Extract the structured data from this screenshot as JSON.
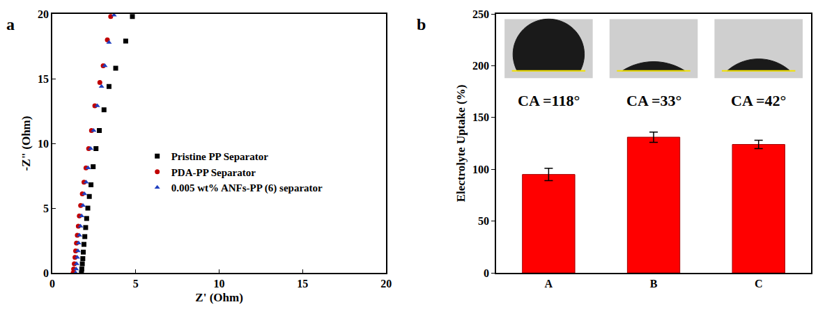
{
  "chart_data": [
    {
      "panel": "a",
      "type": "scatter",
      "x_label": "Z' (Ohm)",
      "y_label": "-Z\" (Ohm)",
      "xlim": [
        0,
        20
      ],
      "xticks": [
        0,
        5,
        10,
        15,
        20
      ],
      "ylim": [
        0,
        20
      ],
      "yticks": [
        0,
        5,
        10,
        15,
        20
      ],
      "grid": false,
      "legend": "right",
      "series": [
        {
          "name": "Pristine PP Separator",
          "color": "#000000",
          "marker": "square",
          "x": [
            1.75,
            1.77,
            1.8,
            1.83,
            1.86,
            1.9,
            1.95,
            2.0,
            2.06,
            2.13,
            2.22,
            2.32,
            2.45,
            2.62,
            2.82,
            3.1,
            3.4,
            3.8,
            4.4,
            4.8
          ],
          "values": [
            0,
            0.3,
            0.7,
            1.1,
            1.6,
            2.2,
            2.8,
            3.5,
            4.2,
            5.0,
            5.9,
            6.8,
            8.2,
            9.6,
            11.0,
            12.6,
            14.4,
            15.8,
            17.9,
            19.8
          ]
        },
        {
          "name": "PDA-PP Separator",
          "color": "#c00000",
          "marker": "circle",
          "x": [
            1.25,
            1.28,
            1.32,
            1.36,
            1.4,
            1.45,
            1.5,
            1.56,
            1.62,
            1.7,
            1.8,
            1.9,
            2.02,
            2.18,
            2.35,
            2.55,
            2.85,
            3.05,
            3.3,
            3.5
          ],
          "values": [
            0,
            0.3,
            0.7,
            1.2,
            1.7,
            2.3,
            2.9,
            3.6,
            4.4,
            5.2,
            6.1,
            7.0,
            8.1,
            9.6,
            11.0,
            12.9,
            14.7,
            16.0,
            18.0,
            19.8
          ]
        },
        {
          "name": "0.005 wt% ANFs-PP (6) separator",
          "color": "#1f3fbf",
          "marker": "triangle",
          "x": [
            1.4,
            1.43,
            1.46,
            1.5,
            1.54,
            1.58,
            1.63,
            1.69,
            1.76,
            1.84,
            1.93,
            2.03,
            2.15,
            2.3,
            2.48,
            2.7,
            2.95,
            3.15,
            3.4,
            3.7
          ],
          "values": [
            0,
            0.3,
            0.7,
            1.2,
            1.7,
            2.3,
            2.9,
            3.6,
            4.4,
            5.2,
            6.1,
            7.0,
            8.1,
            9.6,
            11.0,
            12.9,
            14.4,
            16.0,
            17.8,
            19.9
          ]
        }
      ]
    },
    {
      "panel": "b",
      "type": "bar",
      "y_label": "Electrolyte Uptake (%)",
      "categories": [
        "A",
        "B",
        "C"
      ],
      "values": [
        95,
        131,
        124
      ],
      "errors": [
        6,
        5,
        4
      ],
      "color": "#ff0000",
      "ylim": [
        0,
        250
      ],
      "yticks": [
        0,
        50,
        100,
        150,
        200,
        250
      ],
      "grid": false,
      "annotations": [
        {
          "category": "A",
          "text": "CA =118°",
          "value": 118
        },
        {
          "category": "B",
          "text": "CA =33°",
          "value": 33
        },
        {
          "category": "C",
          "text": "CA =42°",
          "value": 42
        }
      ]
    }
  ]
}
